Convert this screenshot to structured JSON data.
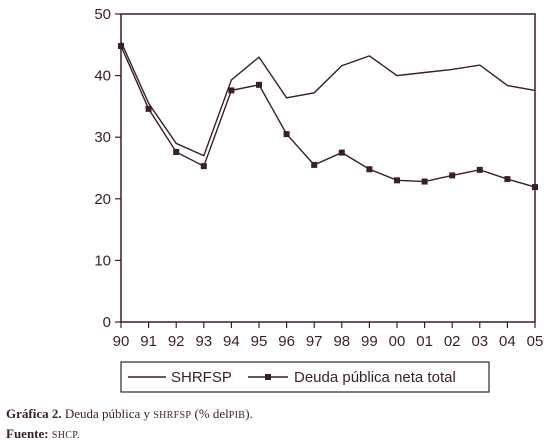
{
  "chart_data": {
    "type": "line",
    "x": [
      "90",
      "91",
      "92",
      "93",
      "94",
      "95",
      "96",
      "97",
      "98",
      "99",
      "00",
      "01",
      "02",
      "03",
      "04",
      "05"
    ],
    "series": [
      {
        "name": "SHRFSP",
        "marker": "none",
        "values": [
          45.5,
          35.5,
          29.0,
          27.0,
          39.3,
          43.0,
          36.4,
          37.2,
          41.6,
          43.2,
          40.0,
          40.5,
          41.0,
          41.7,
          38.4,
          37.6
        ]
      },
      {
        "name": "Deuda pública neta total",
        "marker": "square",
        "values": [
          44.8,
          34.6,
          27.6,
          25.3,
          37.6,
          38.5,
          30.5,
          25.5,
          27.5,
          24.8,
          23.0,
          22.8,
          23.8,
          24.7,
          23.2,
          21.9
        ]
      }
    ],
    "yticks": [
      0,
      10,
      20,
      30,
      40,
      50
    ],
    "ylim": [
      0,
      50
    ],
    "title": "",
    "xlabel": "",
    "ylabel": "",
    "grid": false,
    "legend": "bottom"
  },
  "colors": {
    "ink": "#3a1f2b"
  },
  "caption": {
    "label": "Gráfica 2.",
    "text_a": "Deuda pública y",
    "text_abbr": "SHRFSP",
    "text_b": "(% del",
    "text_abbr2": "PIB",
    "text_c": ").",
    "source_label": "Fuente:",
    "source": "SHCP."
  }
}
